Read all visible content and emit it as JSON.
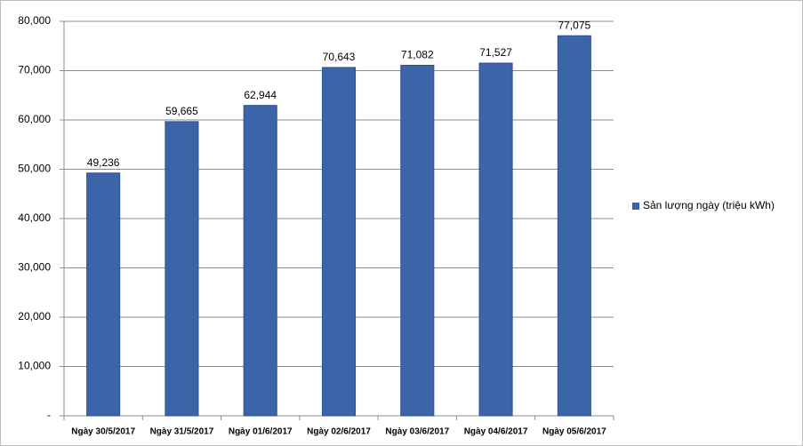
{
  "chart_data": {
    "type": "bar",
    "categories": [
      "Ngày 30/5/2017",
      "Ngày 31/5/2017",
      "Ngày 01/6/2017",
      "Ngày 02/6/2017",
      "Ngày 03/6/2017",
      "Ngày 04/6/2017",
      "Ngày 05/6/2017"
    ],
    "series": [
      {
        "name": "Sản lượng ngày (triệu kWh)",
        "color": "#3b65a8",
        "values": [
          49236,
          59665,
          62944,
          70643,
          71082,
          71527,
          77075
        ],
        "value_labels": [
          "49,236",
          "59,665",
          "62,944",
          "70,643",
          "71,082",
          "71,527",
          "77,075"
        ]
      }
    ],
    "ylim": [
      0,
      80000
    ],
    "yticks": [
      {
        "value": 0,
        "label": "-"
      },
      {
        "value": 10000,
        "label": "10,000"
      },
      {
        "value": 20000,
        "label": "20,000"
      },
      {
        "value": 30000,
        "label": "30,000"
      },
      {
        "value": 40000,
        "label": "40,000"
      },
      {
        "value": 50000,
        "label": "50,000"
      },
      {
        "value": 60000,
        "label": "60,000"
      },
      {
        "value": 70000,
        "label": "70,000"
      },
      {
        "value": 80000,
        "label": "80,000"
      }
    ],
    "grid": true,
    "legend": "right"
  }
}
